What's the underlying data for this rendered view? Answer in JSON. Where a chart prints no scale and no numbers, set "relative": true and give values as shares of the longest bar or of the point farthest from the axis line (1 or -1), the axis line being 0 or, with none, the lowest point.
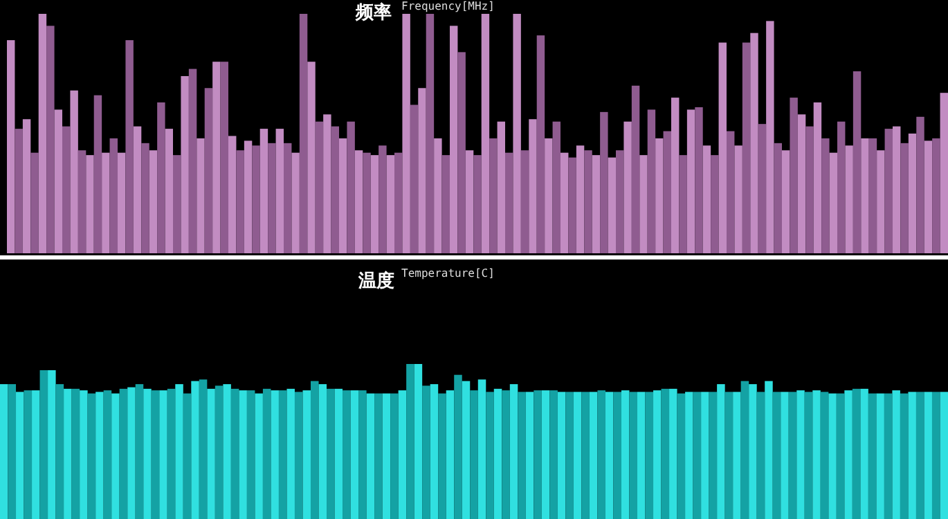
{
  "chart_data": [
    {
      "type": "bar",
      "title": "频率",
      "subtitle": "Frequency[MHz]",
      "relative": true,
      "categories": [
        null,
        null,
        null,
        null,
        null,
        null,
        null,
        null,
        null,
        null,
        null,
        null,
        null,
        null,
        null,
        null,
        null,
        null,
        null,
        null,
        null,
        null,
        null,
        null,
        null,
        null,
        null,
        null,
        null,
        null,
        null,
        null,
        null,
        null,
        null,
        null,
        null,
        null,
        null,
        null,
        null,
        null,
        null,
        null,
        null,
        null,
        null,
        null,
        null,
        null,
        null,
        null,
        null,
        null,
        null,
        null,
        null,
        null,
        null,
        null,
        null,
        null,
        null,
        null,
        null,
        null,
        null,
        null,
        null,
        null,
        null,
        null,
        null,
        null,
        null,
        null,
        null,
        null,
        null,
        null,
        null,
        null,
        null,
        null,
        null,
        null,
        null,
        null,
        null,
        null,
        null,
        null,
        null,
        null,
        null,
        null,
        null,
        null,
        null,
        null,
        null,
        null,
        null,
        null,
        null,
        null,
        null,
        null,
        null,
        null,
        null,
        null,
        null,
        null,
        null,
        null,
        null,
        null,
        null
      ],
      "values": [
        0.89,
        0.52,
        0.56,
        0.42,
        1.0,
        0.95,
        0.6,
        0.53,
        0.68,
        0.43,
        0.41,
        0.66,
        0.42,
        0.48,
        0.42,
        0.89,
        0.53,
        0.46,
        0.43,
        0.63,
        0.52,
        0.41,
        0.74,
        0.77,
        0.48,
        0.69,
        0.8,
        0.8,
        0.49,
        0.43,
        0.47,
        0.45,
        0.52,
        0.46,
        0.52,
        0.46,
        0.42,
        1.0,
        0.8,
        0.55,
        0.58,
        0.53,
        0.48,
        0.55,
        0.43,
        0.42,
        0.41,
        0.45,
        0.41,
        0.42,
        1.0,
        0.62,
        0.69,
        1.0,
        0.48,
        0.41,
        0.95,
        0.84,
        0.43,
        0.41,
        1.0,
        0.48,
        0.55,
        0.42,
        1.0,
        0.43,
        0.56,
        0.91,
        0.48,
        0.55,
        0.42,
        0.4,
        0.45,
        0.43,
        0.41,
        0.59,
        0.4,
        0.43,
        0.55,
        0.7,
        0.41,
        0.6,
        0.48,
        0.51,
        0.65,
        0.41,
        0.6,
        0.61,
        0.45,
        0.41,
        0.88,
        0.51,
        0.45,
        0.88,
        0.92,
        0.54,
        0.97,
        0.46,
        0.43,
        0.65,
        0.58,
        0.53,
        0.63,
        0.48,
        0.42,
        0.55,
        0.45,
        0.76,
        0.48,
        0.48,
        0.43,
        0.52,
        0.53,
        0.46,
        0.5,
        0.57,
        0.47,
        0.48,
        0.67
      ],
      "colors": [
        "#c28cc2",
        "#8f5c90",
        "#c28cc2",
        "#8f5c90",
        "#c28cc2",
        "#8f5c90",
        "#c28cc2",
        "#8f5c90",
        "#c28cc2",
        "#8f5c90",
        "#c28cc2",
        "#8f5c90",
        "#c28cc2",
        "#8f5c90",
        "#c28cc2",
        "#8f5c90",
        "#c28cc2",
        "#8f5c90",
        "#c28cc2",
        "#8f5c90",
        "#c28cc2",
        "#8f5c90",
        "#c28cc2",
        "#8f5c90",
        "#c28cc2",
        "#8f5c90",
        "#c28cc2",
        "#8f5c90",
        "#c28cc2",
        "#8f5c90",
        "#c28cc2",
        "#8f5c90",
        "#c28cc2",
        "#8f5c90",
        "#c28cc2",
        "#8f5c90",
        "#c28cc2",
        "#8f5c90",
        "#c28cc2",
        "#8f5c90",
        "#c28cc2",
        "#8f5c90",
        "#c28cc2",
        "#8f5c90",
        "#c28cc2",
        "#8f5c90",
        "#c28cc2",
        "#8f5c90",
        "#c28cc2",
        "#8f5c90",
        "#c28cc2",
        "#8f5c90",
        "#c28cc2",
        "#8f5c90",
        "#c28cc2",
        "#8f5c90",
        "#c28cc2",
        "#8f5c90",
        "#c28cc2",
        "#8f5c90",
        "#c28cc2",
        "#8f5c90",
        "#c28cc2",
        "#8f5c90",
        "#c28cc2",
        "#8f5c90",
        "#c28cc2",
        "#8f5c90",
        "#c28cc2",
        "#8f5c90",
        "#c28cc2",
        "#8f5c90",
        "#c28cc2",
        "#8f5c90",
        "#c28cc2",
        "#8f5c90",
        "#c28cc2",
        "#8f5c90",
        "#c28cc2",
        "#8f5c90",
        "#c28cc2",
        "#8f5c90",
        "#c28cc2",
        "#8f5c90",
        "#c28cc2",
        "#8f5c90",
        "#c28cc2",
        "#8f5c90",
        "#c28cc2",
        "#8f5c90",
        "#c28cc2",
        "#8f5c90",
        "#c28cc2",
        "#8f5c90",
        "#c28cc2",
        "#8f5c90",
        "#c28cc2",
        "#8f5c90",
        "#c28cc2",
        "#8f5c90",
        "#c28cc2",
        "#8f5c90",
        "#c28cc2",
        "#8f5c90",
        "#c28cc2",
        "#8f5c90",
        "#c28cc2",
        "#8f5c90",
        "#c28cc2",
        "#8f5c90",
        "#c28cc2",
        "#8f5c90",
        "#c28cc2",
        "#8f5c90",
        "#c28cc2",
        "#8f5c90",
        "#c28cc2",
        "#8f5c90",
        "#c28cc2"
      ]
    },
    {
      "type": "bar",
      "title": "温度",
      "subtitle": "Temperature[C]",
      "relative": true,
      "categories": [
        null,
        null,
        null,
        null,
        null,
        null,
        null,
        null,
        null,
        null,
        null,
        null,
        null,
        null,
        null,
        null,
        null,
        null,
        null,
        null,
        null,
        null,
        null,
        null,
        null,
        null,
        null,
        null,
        null,
        null,
        null,
        null,
        null,
        null,
        null,
        null,
        null,
        null,
        null,
        null,
        null,
        null,
        null,
        null,
        null,
        null,
        null,
        null,
        null,
        null,
        null,
        null,
        null,
        null,
        null,
        null,
        null,
        null,
        null,
        null,
        null,
        null,
        null,
        null,
        null,
        null,
        null,
        null,
        null,
        null,
        null,
        null,
        null,
        null,
        null,
        null,
        null,
        null,
        null,
        null,
        null,
        null,
        null,
        null,
        null,
        null,
        null,
        null,
        null,
        null,
        null,
        null,
        null,
        null,
        null,
        null,
        null,
        null,
        null,
        null,
        null,
        null,
        null,
        null,
        null,
        null,
        null,
        null,
        null,
        null,
        null,
        null,
        null,
        null,
        null,
        null,
        null,
        null,
        null
      ],
      "values": [
        0.87,
        0.87,
        0.82,
        0.83,
        0.83,
        0.96,
        0.96,
        0.87,
        0.84,
        0.84,
        0.83,
        0.81,
        0.82,
        0.83,
        0.81,
        0.84,
        0.85,
        0.87,
        0.84,
        0.83,
        0.83,
        0.84,
        0.87,
        0.81,
        0.89,
        0.9,
        0.84,
        0.86,
        0.87,
        0.84,
        0.83,
        0.83,
        0.81,
        0.84,
        0.83,
        0.83,
        0.84,
        0.82,
        0.83,
        0.89,
        0.87,
        0.84,
        0.84,
        0.83,
        0.83,
        0.83,
        0.81,
        0.81,
        0.81,
        0.81,
        0.83,
        1.0,
        1.0,
        0.86,
        0.87,
        0.81,
        0.83,
        0.93,
        0.89,
        0.83,
        0.9,
        0.82,
        0.84,
        0.83,
        0.87,
        0.82,
        0.82,
        0.83,
        0.83,
        0.83,
        0.82,
        0.82,
        0.82,
        0.82,
        0.82,
        0.83,
        0.82,
        0.82,
        0.83,
        0.82,
        0.82,
        0.82,
        0.83,
        0.84,
        0.84,
        0.81,
        0.82,
        0.82,
        0.82,
        0.82,
        0.87,
        0.82,
        0.82,
        0.89,
        0.87,
        0.82,
        0.89,
        0.82,
        0.82,
        0.82,
        0.83,
        0.82,
        0.83,
        0.82,
        0.81,
        0.81,
        0.83,
        0.84,
        0.84,
        0.81,
        0.81,
        0.81,
        0.83,
        0.81,
        0.82,
        0.82,
        0.82,
        0.82,
        0.82
      ],
      "colors": [
        "#30e0e0",
        "#14a2a4",
        "#30e0e0",
        "#14a2a4",
        "#30e0e0",
        "#14a2a4",
        "#30e0e0",
        "#14a2a4",
        "#30e0e0",
        "#14a2a4",
        "#30e0e0",
        "#14a2a4",
        "#30e0e0",
        "#14a2a4",
        "#30e0e0",
        "#14a2a4",
        "#30e0e0",
        "#14a2a4",
        "#30e0e0",
        "#14a2a4",
        "#30e0e0",
        "#14a2a4",
        "#30e0e0",
        "#14a2a4",
        "#30e0e0",
        "#14a2a4",
        "#30e0e0",
        "#14a2a4",
        "#30e0e0",
        "#14a2a4",
        "#30e0e0",
        "#14a2a4",
        "#30e0e0",
        "#14a2a4",
        "#30e0e0",
        "#14a2a4",
        "#30e0e0",
        "#14a2a4",
        "#30e0e0",
        "#14a2a4",
        "#30e0e0",
        "#14a2a4",
        "#30e0e0",
        "#14a2a4",
        "#30e0e0",
        "#14a2a4",
        "#30e0e0",
        "#14a2a4",
        "#30e0e0",
        "#14a2a4",
        "#30e0e0",
        "#14a2a4",
        "#30e0e0",
        "#14a2a4",
        "#30e0e0",
        "#14a2a4",
        "#30e0e0",
        "#14a2a4",
        "#30e0e0",
        "#14a2a4",
        "#30e0e0",
        "#14a2a4",
        "#30e0e0",
        "#14a2a4",
        "#30e0e0",
        "#14a2a4",
        "#30e0e0",
        "#14a2a4",
        "#30e0e0",
        "#14a2a4",
        "#30e0e0",
        "#14a2a4",
        "#30e0e0",
        "#14a2a4",
        "#30e0e0",
        "#14a2a4",
        "#30e0e0",
        "#14a2a4",
        "#30e0e0",
        "#14a2a4",
        "#30e0e0",
        "#14a2a4",
        "#30e0e0",
        "#14a2a4",
        "#30e0e0",
        "#14a2a4",
        "#30e0e0",
        "#14a2a4",
        "#30e0e0",
        "#14a2a4",
        "#30e0e0",
        "#14a2a4",
        "#30e0e0",
        "#14a2a4",
        "#30e0e0",
        "#14a2a4",
        "#30e0e0",
        "#14a2a4",
        "#30e0e0",
        "#14a2a4",
        "#30e0e0",
        "#14a2a4",
        "#30e0e0",
        "#14a2a4",
        "#30e0e0",
        "#14a2a4",
        "#30e0e0",
        "#14a2a4",
        "#30e0e0",
        "#14a2a4",
        "#30e0e0",
        "#14a2a4",
        "#30e0e0",
        "#14a2a4",
        "#30e0e0",
        "#14a2a4",
        "#30e0e0",
        "#14a2a4",
        "#30e0e0"
      ]
    }
  ]
}
